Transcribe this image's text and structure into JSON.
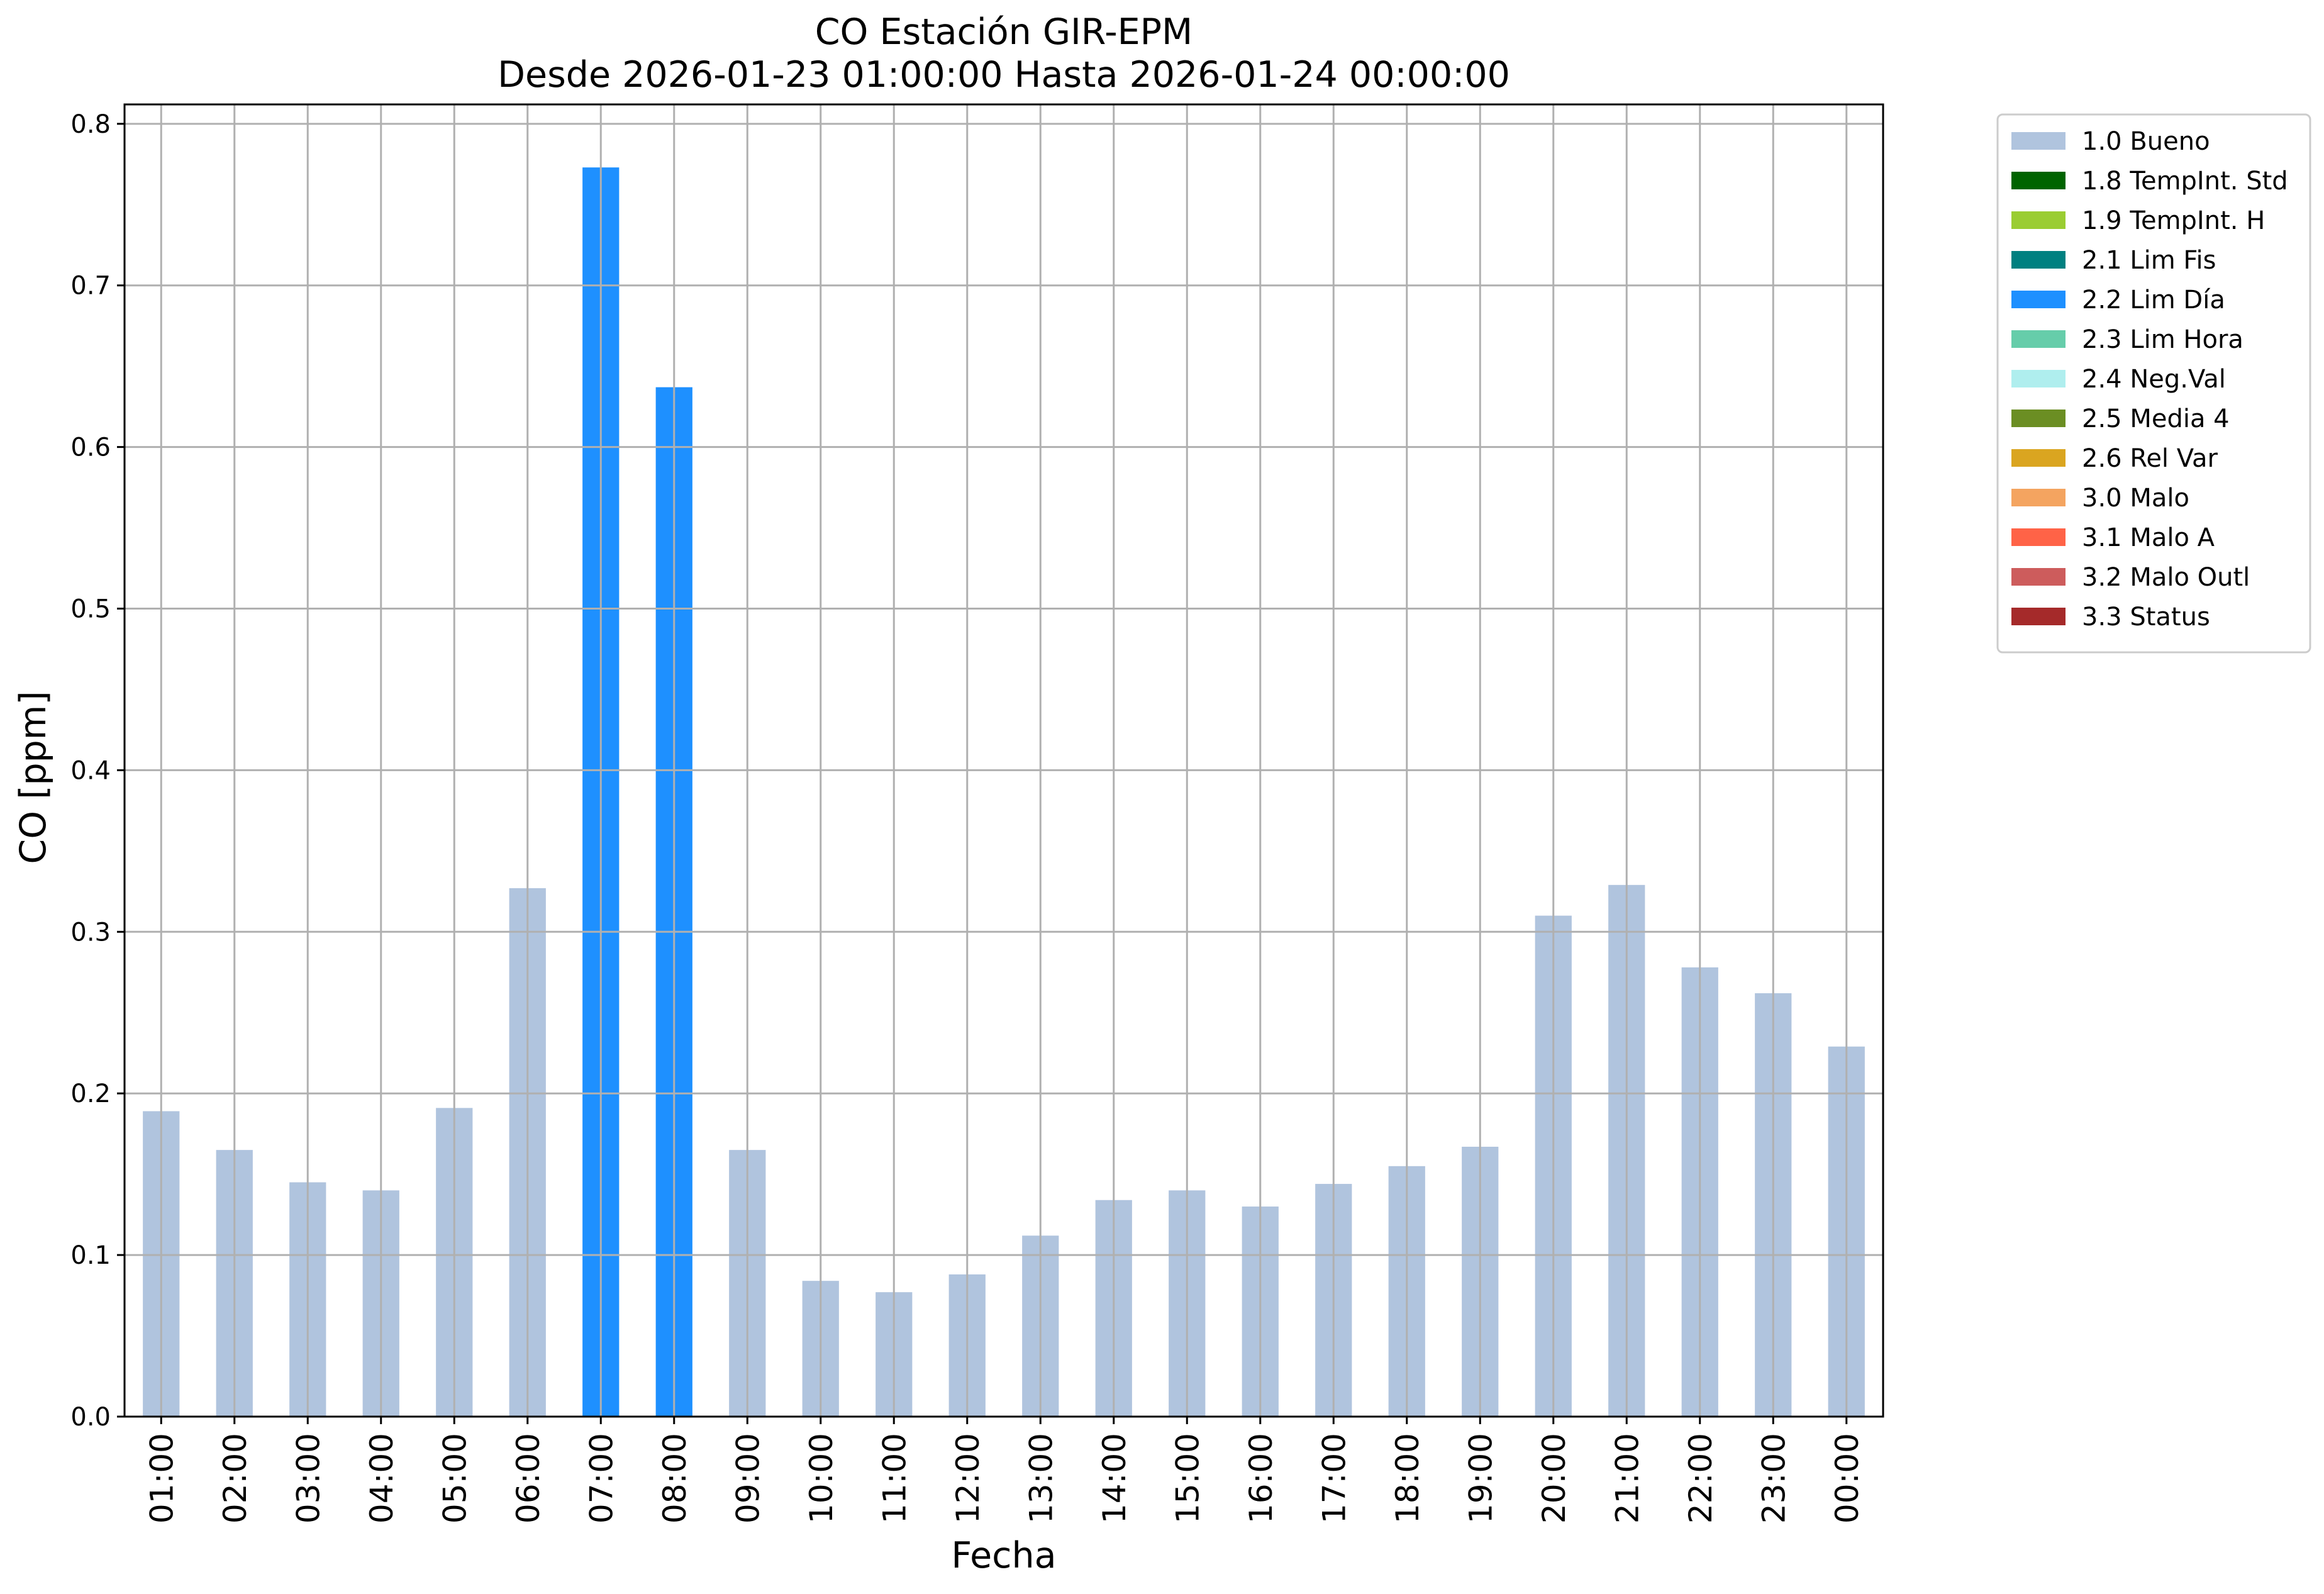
{
  "chart_data": {
    "type": "bar",
    "title": "CO Estación GIR-EPM",
    "subtitle": "Desde 2026-01-23 01:00:00 Hasta 2026-01-24 00:00:00",
    "xlabel": "Fecha",
    "ylabel": "CO [ppm]",
    "ylim": [
      0,
      0.812
    ],
    "yticks": [
      "0.0",
      "0.1",
      "0.2",
      "0.3",
      "0.4",
      "0.5",
      "0.6",
      "0.7",
      "0.8"
    ],
    "grid": true,
    "legend_position": "outside right, top",
    "categories": [
      "01:00",
      "02:00",
      "03:00",
      "04:00",
      "05:00",
      "06:00",
      "07:00",
      "08:00",
      "09:00",
      "10:00",
      "11:00",
      "12:00",
      "13:00",
      "14:00",
      "15:00",
      "16:00",
      "17:00",
      "18:00",
      "19:00",
      "20:00",
      "21:00",
      "22:00",
      "23:00",
      "00:00"
    ],
    "values": [
      0.189,
      0.165,
      0.145,
      0.14,
      0.191,
      0.327,
      0.773,
      0.637,
      0.165,
      0.084,
      0.077,
      0.088,
      0.112,
      0.134,
      0.14,
      0.13,
      0.144,
      0.155,
      0.167,
      0.31,
      0.329,
      0.278,
      0.262,
      0.229
    ],
    "flags": [
      "1.0 Bueno",
      "1.0 Bueno",
      "1.0 Bueno",
      "1.0 Bueno",
      "1.0 Bueno",
      "1.0 Bueno",
      "2.2 Lim Día",
      "2.2 Lim Día",
      "1.0 Bueno",
      "1.0 Bueno",
      "1.0 Bueno",
      "1.0 Bueno",
      "1.0 Bueno",
      "1.0 Bueno",
      "1.0 Bueno",
      "1.0 Bueno",
      "1.0 Bueno",
      "1.0 Bueno",
      "1.0 Bueno",
      "1.0 Bueno",
      "1.0 Bueno",
      "1.0 Bueno",
      "1.0 Bueno",
      "1.0 Bueno"
    ],
    "legend": [
      {
        "name": "1.0 Bueno",
        "color": "#b0c4de"
      },
      {
        "name": "1.8 TempInt. Std",
        "color": "#006400"
      },
      {
        "name": "1.9 TempInt. H",
        "color": "#9acd32"
      },
      {
        "name": "2.1 Lim Fis",
        "color": "#008080"
      },
      {
        "name": "2.2 Lim Día",
        "color": "#1e90ff"
      },
      {
        "name": "2.3 Lim Hora",
        "color": "#66cdaa"
      },
      {
        "name": "2.4 Neg.Val",
        "color": "#afeeee"
      },
      {
        "name": "2.5 Media 4",
        "color": "#6b8e23"
      },
      {
        "name": "2.6 Rel Var",
        "color": "#daa520"
      },
      {
        "name": "3.0 Malo",
        "color": "#f4a460"
      },
      {
        "name": "3.1 Malo A",
        "color": "#ff6347"
      },
      {
        "name": "3.2 Malo Outl",
        "color": "#cd5c5c"
      },
      {
        "name": "3.3 Status",
        "color": "#a52a2a"
      }
    ]
  }
}
